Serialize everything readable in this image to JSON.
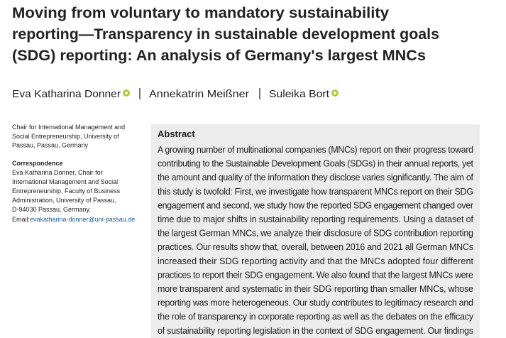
{
  "header": {
    "title_lines": [
      "Moving from voluntary to mandatory sustainability",
      "reporting—Transparency in sustainable development goals",
      "(SDG) reporting: An analysis of Germany's largest MNCs"
    ],
    "authors": [
      "Eva Katharina Donner",
      "Annekatrin Meißner",
      "Suleika Bort"
    ]
  },
  "sidebar": {
    "affiliation_lines": [
      "Chair for International Management and",
      "Social Entrepreneurship, University of",
      "Passau, Passau, Germany"
    ],
    "correspondence_heading": "Correspondence",
    "correspondence_lines": [
      "Eva Katharina Donner, Chair for",
      "International Management and Social",
      "Entrepreneurship, Faculty of Business",
      "Administration, University of Passau,",
      "D-94030 Passau, Germany."
    ],
    "email_label": "Email:",
    "email": "evakatharina-donner@uni-passau.de"
  },
  "abstract": {
    "heading": "Abstract",
    "lines": [
      "A growing number of multinational companies (MNCs) report on their progress toward",
      "contributing to the Sustainable Development Goals (SDGs) in their annual reports, yet",
      "the amount and quality of the information they disclose varies significantly. The aim of",
      "this study is twofold: First, we investigate how transparent MNCs report on their SDG",
      "engagement and second, we study how the reported SDG engagement changed over",
      "time due to major shifts in sustainability reporting requirements. Using a dataset of",
      "the largest German MNCs, we analyze their disclosure of SDG contribution reporting",
      "practices. Our results show that, overall, between 2016 and 2021 all German MNCs",
      "increased their SDG reporting activity and that the MNCs adopted four different",
      "practices to report their SDG engagement. We also found that the largest MNCs were",
      "more transparent and systematic in their SDG reporting than smaller MNCs, whose",
      "reporting was more heterogeneous. Our study contributes to legitimacy research and",
      "the role of transparency in corporate reporting as well as the debates on the efficacy",
      "of sustainability reporting legislation in the context of SDG engagement. Our findings"
    ]
  }
}
